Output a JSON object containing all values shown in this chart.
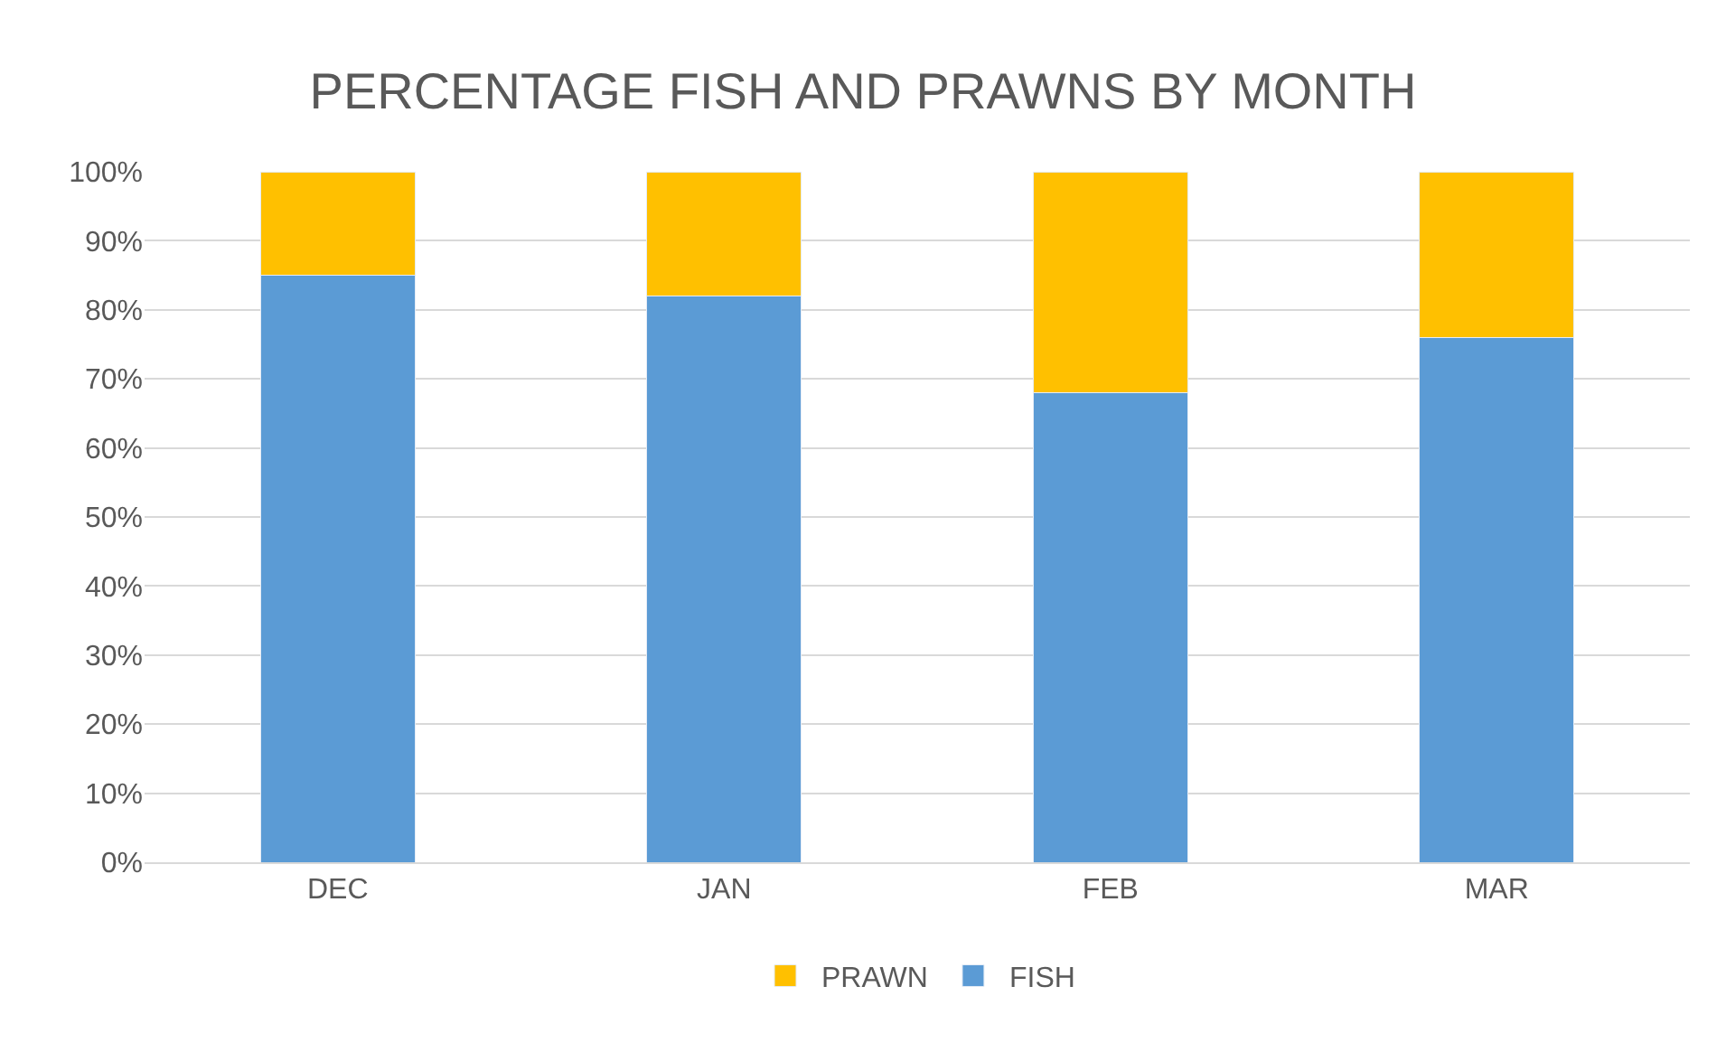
{
  "chart_data": {
    "type": "bar",
    "title": "PERCENTAGE FISH AND PRAWNS BY MONTH",
    "categories": [
      "DEC",
      "JAN",
      "FEB",
      "MAR"
    ],
    "stacked": true,
    "series": [
      {
        "name": "FISH",
        "color": "#5b9bd5",
        "values": [
          85,
          82,
          68,
          76
        ]
      },
      {
        "name": "PRAWN",
        "color": "#ffc000",
        "values": [
          15,
          18,
          32,
          24
        ]
      }
    ],
    "ylim": [
      0,
      100
    ],
    "yticks": [
      {
        "value": 0,
        "label": "0%"
      },
      {
        "value": 10,
        "label": "10%"
      },
      {
        "value": 20,
        "label": "20%"
      },
      {
        "value": 30,
        "label": "30%"
      },
      {
        "value": 40,
        "label": "40%"
      },
      {
        "value": 50,
        "label": "50%"
      },
      {
        "value": 60,
        "label": "60%"
      },
      {
        "value": 70,
        "label": "70%"
      },
      {
        "value": 80,
        "label": "80%"
      },
      {
        "value": 90,
        "label": "90%"
      },
      {
        "value": 100,
        "label": "100%"
      }
    ],
    "grid": "y",
    "legend": "bottom"
  }
}
